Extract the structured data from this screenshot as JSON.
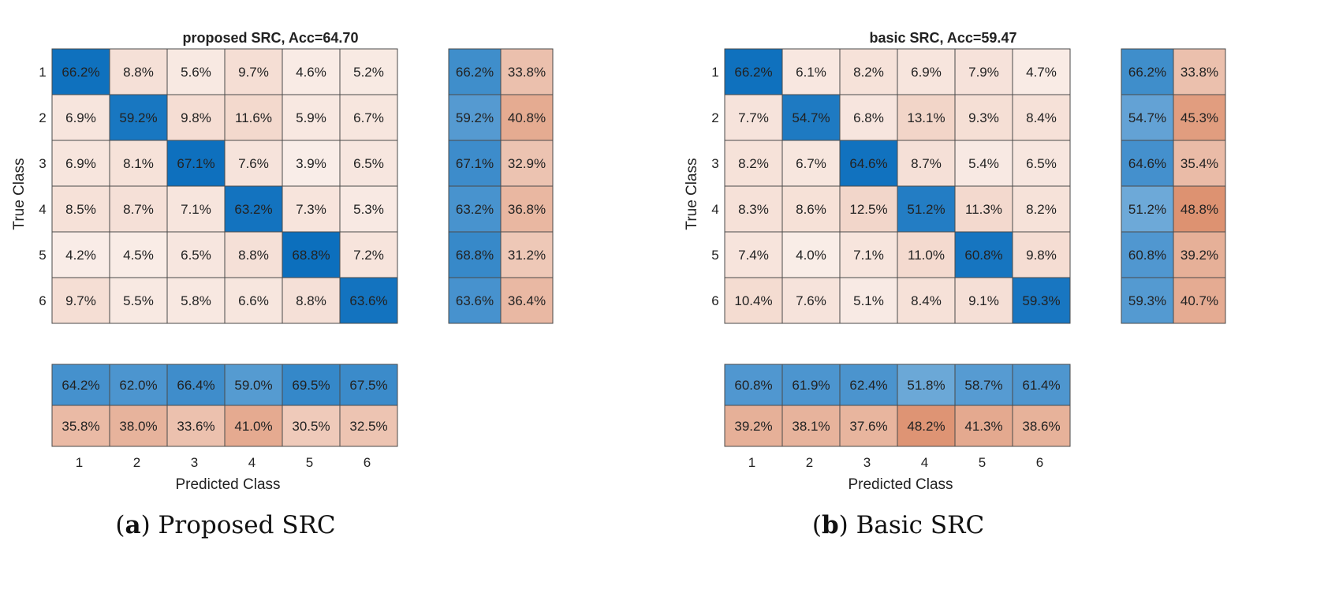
{
  "figure": {
    "panels": [
      {
        "caption_letter": "a",
        "caption_text": " Proposed SRC",
        "caption_open": "(",
        "caption_close": ")"
      },
      {
        "caption_letter": "b",
        "caption_text": " Basic SRC",
        "caption_open": "(",
        "caption_close": ")"
      }
    ]
  },
  "chart_data": [
    {
      "type": "heatmap",
      "title": "proposed SRC, Acc=64.70",
      "xlabel": "Predicted Class",
      "ylabel": "True Class",
      "classes": [
        "1",
        "2",
        "3",
        "4",
        "5",
        "6"
      ],
      "matrix": [
        [
          "66.2%",
          "8.8%",
          "5.6%",
          "9.7%",
          "4.6%",
          "5.2%"
        ],
        [
          "6.9%",
          "59.2%",
          "9.8%",
          "11.6%",
          "5.9%",
          "6.7%"
        ],
        [
          "6.9%",
          "8.1%",
          "67.1%",
          "7.6%",
          "3.9%",
          "6.5%"
        ],
        [
          "8.5%",
          "8.7%",
          "7.1%",
          "63.2%",
          "7.3%",
          "5.3%"
        ],
        [
          "4.2%",
          "4.5%",
          "6.5%",
          "8.8%",
          "68.8%",
          "7.2%"
        ],
        [
          "9.7%",
          "5.5%",
          "5.8%",
          "6.6%",
          "8.8%",
          "63.6%"
        ]
      ],
      "row_summary": [
        [
          "66.2%",
          "33.8%"
        ],
        [
          "59.2%",
          "40.8%"
        ],
        [
          "67.1%",
          "32.9%"
        ],
        [
          "63.2%",
          "36.8%"
        ],
        [
          "68.8%",
          "31.2%"
        ],
        [
          "63.6%",
          "36.4%"
        ]
      ],
      "column_summary": {
        "correct": [
          "64.2%",
          "62.0%",
          "66.4%",
          "59.0%",
          "69.5%",
          "67.5%"
        ],
        "incorrect": [
          "35.8%",
          "38.0%",
          "33.6%",
          "41.0%",
          "30.5%",
          "32.5%"
        ]
      },
      "colors": {
        "correct_max": "#0a6ebd",
        "incorrect_max": "#d98560",
        "empty": "#ffffff"
      }
    },
    {
      "type": "heatmap",
      "title": "basic SRC, Acc=59.47",
      "xlabel": "Predicted Class",
      "ylabel": "True Class",
      "classes": [
        "1",
        "2",
        "3",
        "4",
        "5",
        "6"
      ],
      "matrix": [
        [
          "66.2%",
          "6.1%",
          "8.2%",
          "6.9%",
          "7.9%",
          "4.7%"
        ],
        [
          "7.7%",
          "54.7%",
          "6.8%",
          "13.1%",
          "9.3%",
          "8.4%"
        ],
        [
          "8.2%",
          "6.7%",
          "64.6%",
          "8.7%",
          "5.4%",
          "6.5%"
        ],
        [
          "8.3%",
          "8.6%",
          "12.5%",
          "51.2%",
          "11.3%",
          "8.2%"
        ],
        [
          "7.4%",
          "4.0%",
          "7.1%",
          "11.0%",
          "60.8%",
          "9.8%"
        ],
        [
          "10.4%",
          "7.6%",
          "5.1%",
          "8.4%",
          "9.1%",
          "59.3%"
        ]
      ],
      "row_summary": [
        [
          "66.2%",
          "33.8%"
        ],
        [
          "54.7%",
          "45.3%"
        ],
        [
          "64.6%",
          "35.4%"
        ],
        [
          "51.2%",
          "48.8%"
        ],
        [
          "60.8%",
          "39.2%"
        ],
        [
          "59.3%",
          "40.7%"
        ]
      ],
      "column_summary": {
        "correct": [
          "60.8%",
          "61.9%",
          "62.4%",
          "51.8%",
          "58.7%",
          "61.4%"
        ],
        "incorrect": [
          "39.2%",
          "38.1%",
          "37.6%",
          "48.2%",
          "41.3%",
          "38.6%"
        ]
      },
      "colors": {
        "correct_max": "#0a6ebd",
        "incorrect_max": "#d98560",
        "empty": "#ffffff"
      }
    }
  ]
}
